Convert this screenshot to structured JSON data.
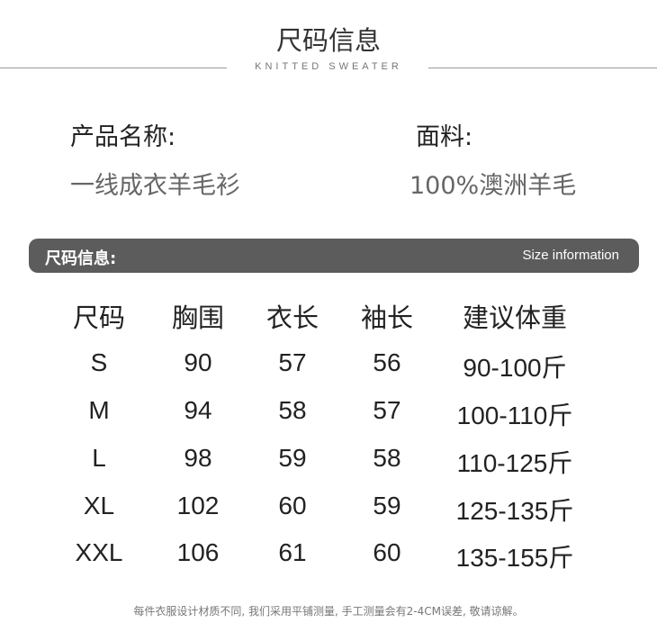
{
  "header": {
    "title": "尺码信息",
    "subtitle": "KNITTED SWEATER"
  },
  "product": {
    "name_label": "产品名称:",
    "name_value": "一线成衣羊毛衫",
    "material_label": "面料:",
    "material_value": "100%澳洲羊毛"
  },
  "bar": {
    "left": "尺码信息:",
    "right": "Size information",
    "color": "#5c5c5c"
  },
  "table": {
    "headers": [
      "尺码",
      "胸围",
      "衣长",
      "袖长",
      "建议体重"
    ],
    "rows": [
      [
        "S",
        "90",
        "57",
        "56",
        "90-100斤"
      ],
      [
        "M",
        "94",
        "58",
        "57",
        "100-110斤"
      ],
      [
        "L",
        "98",
        "59",
        "58",
        "110-125斤"
      ],
      [
        "XL",
        "102",
        "60",
        "59",
        "125-135斤"
      ],
      [
        "XXL",
        "106",
        "61",
        "60",
        "135-155斤"
      ]
    ]
  },
  "footer": "每件衣服设计材质不同, 我们采用平铺测量, 手工测量会有2-4CM误差, 敬请谅解。"
}
